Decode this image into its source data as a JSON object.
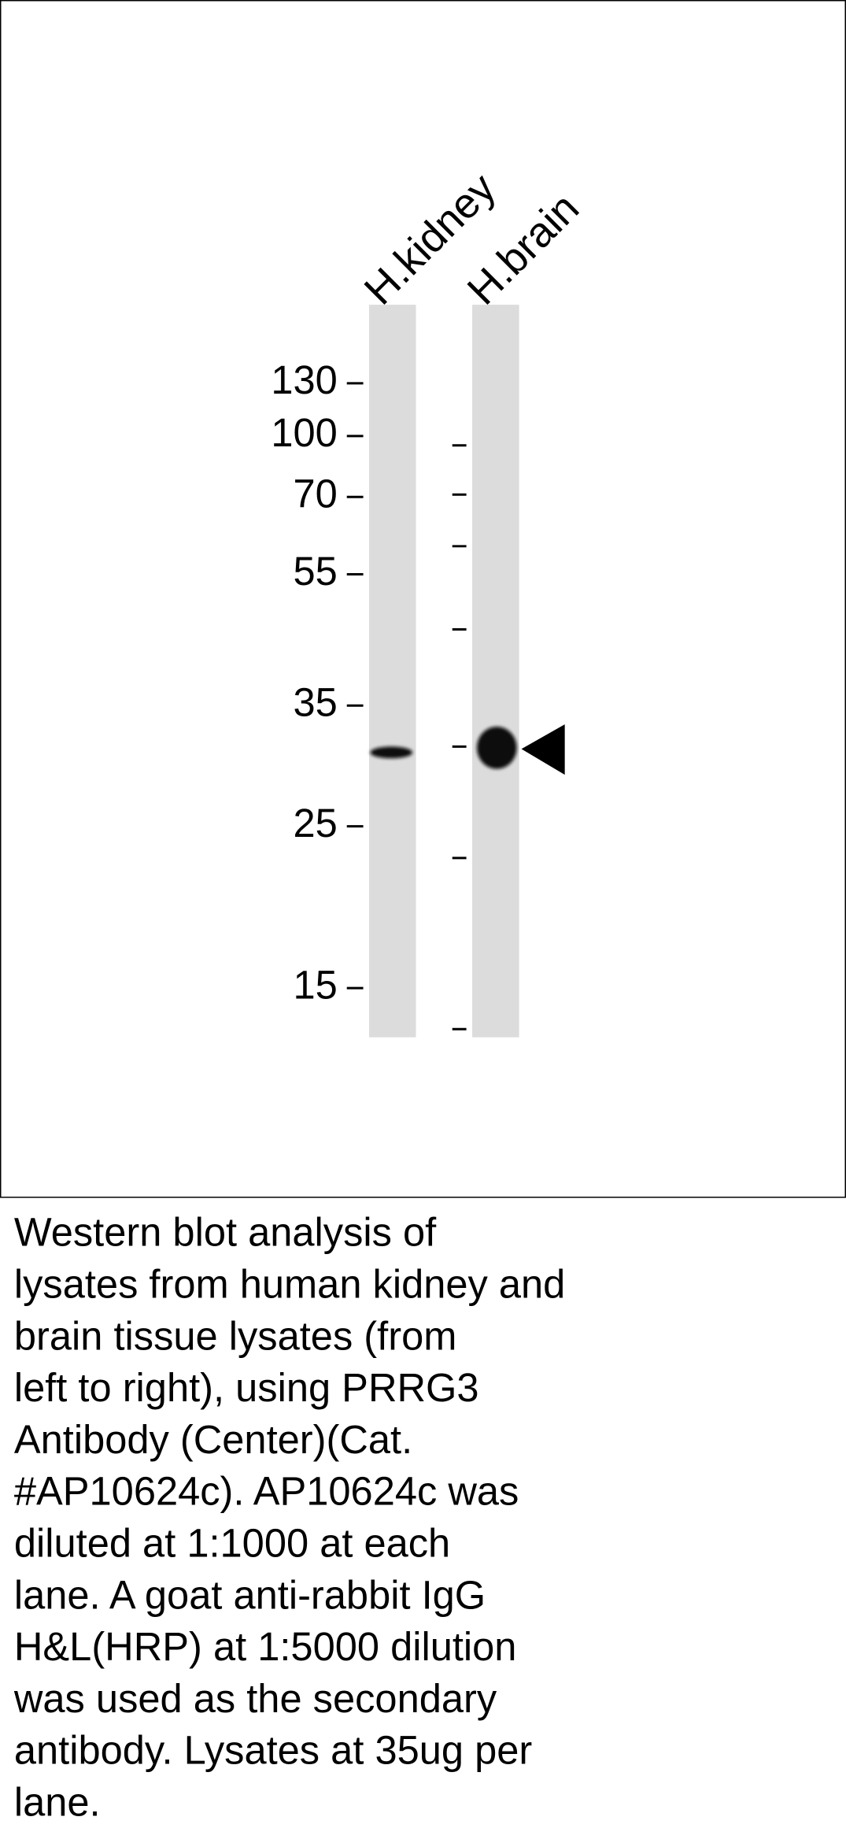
{
  "figure": {
    "lanes": [
      "H.kidney",
      "H.brain"
    ],
    "markers": [
      "130",
      "100",
      "70",
      "55",
      "35",
      "25",
      "15"
    ],
    "caption": [
      "Western blot analysis of",
      "lysates from human kidney and",
      "brain tissue lysates (from",
      "left to right), using PRRG3",
      "Antibody (Center)(Cat.",
      "#AP10624c). AP10624c was",
      "diluted at 1:1000 at each",
      "lane. A goat anti-rabbit IgG",
      "H&L(HRP) at 1:5000 dilution",
      "was used as the secondary",
      "antibody. Lysates at 35ug per",
      "lane."
    ]
  }
}
